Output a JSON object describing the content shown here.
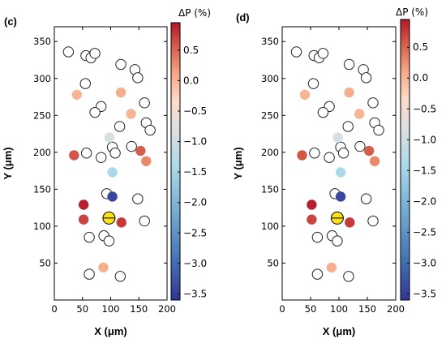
{
  "figure": {
    "panels": [
      "(c)",
      "(d)"
    ],
    "xlabel": "X (μm)",
    "ylabel": "Y (μm)",
    "colorbar_label": "ΔP (%)"
  },
  "colors": {
    "open_marker_edge": "#222222",
    "yellow_marker": "#ffe11a",
    "colormap": "RdBu_r"
  },
  "chart_data": [
    {
      "type": "scatter",
      "panel": "(c)",
      "title": "",
      "xlabel": "X (μm)",
      "ylabel": "Y (μm)",
      "xlim": [
        0,
        200
      ],
      "ylim": [
        0,
        370
      ],
      "xticks": [
        0,
        50,
        100,
        150,
        200
      ],
      "yticks": [
        50,
        100,
        150,
        200,
        250,
        300,
        350
      ],
      "grid": false,
      "colorbar": {
        "label": "ΔP (%)",
        "range": [
          -3.6,
          0.95
        ],
        "ticks": [
          0.5,
          0.0,
          -0.5,
          -1.0,
          -1.5,
          -2.0,
          -2.5,
          -3.0,
          -3.5
        ],
        "tick_labels": [
          "0.5",
          "0.0",
          "−0.5",
          "−1.0",
          "−1.5",
          "−2.0",
          "−2.5",
          "−3.0",
          "−3.5"
        ]
      },
      "open_points": [
        [
          25,
          336
        ],
        [
          56,
          331
        ],
        [
          65,
          328
        ],
        [
          72,
          334
        ],
        [
          118,
          319
        ],
        [
          143,
          312
        ],
        [
          148,
          301
        ],
        [
          55,
          293
        ],
        [
          83,
          262
        ],
        [
          72,
          254
        ],
        [
          160,
          267
        ],
        [
          163,
          240
        ],
        [
          170,
          230
        ],
        [
          116,
          235
        ],
        [
          137,
          208
        ],
        [
          103,
          207
        ],
        [
          108,
          199
        ],
        [
          57,
          199
        ],
        [
          83,
          193
        ],
        [
          93,
          144
        ],
        [
          148,
          137
        ],
        [
          160,
          107
        ],
        [
          62,
          85
        ],
        [
          88,
          87
        ],
        [
          97,
          80
        ],
        [
          62,
          35
        ],
        [
          117,
          32
        ]
      ],
      "colored_points": [
        {
          "x": 40,
          "y": 278,
          "dp": 0.0
        },
        {
          "x": 118,
          "y": 281,
          "dp": 0.05
        },
        {
          "x": 136,
          "y": 252,
          "dp": 0.0
        },
        {
          "x": 98,
          "y": 220,
          "dp": -0.9
        },
        {
          "x": 35,
          "y": 196,
          "dp": 0.6
        },
        {
          "x": 153,
          "y": 202,
          "dp": 0.55
        },
        {
          "x": 163,
          "y": 188,
          "dp": 0.3
        },
        {
          "x": 103,
          "y": 173,
          "dp": -1.4
        },
        {
          "x": 103,
          "y": 140,
          "dp": -3.4
        },
        {
          "x": 52,
          "y": 129,
          "dp": 0.9
        },
        {
          "x": 52,
          "y": 109,
          "dp": 0.7
        },
        {
          "x": 119,
          "y": 105,
          "dp": 0.75
        },
        {
          "x": 87,
          "y": 44,
          "dp": 0.05
        }
      ],
      "highlight_point": {
        "x": 97,
        "y": 111,
        "color": "yellow"
      }
    },
    {
      "type": "scatter",
      "panel": "(d)",
      "title": "",
      "xlabel": "X (μm)",
      "ylabel": "Y (μm)",
      "xlim": [
        0,
        200
      ],
      "ylim": [
        0,
        370
      ],
      "xticks": [
        0,
        50,
        100,
        150,
        200
      ],
      "yticks": [
        50,
        100,
        150,
        200,
        250,
        300,
        350
      ],
      "grid": false,
      "colorbar": {
        "label": "ΔP (%)",
        "range": [
          -3.6,
          0.95
        ],
        "ticks": [
          0.5,
          0.0,
          -0.5,
          -1.0,
          -1.5,
          -2.0,
          -2.5,
          -3.0,
          -3.5
        ],
        "tick_labels": [
          "0.5",
          "0.0",
          "−0.5",
          "−1.0",
          "−1.5",
          "−2.0",
          "−2.5",
          "−3.0",
          "−3.5"
        ]
      },
      "open_points": [
        [
          25,
          336
        ],
        [
          56,
          331
        ],
        [
          65,
          328
        ],
        [
          72,
          334
        ],
        [
          118,
          319
        ],
        [
          143,
          312
        ],
        [
          148,
          301
        ],
        [
          55,
          293
        ],
        [
          83,
          262
        ],
        [
          72,
          254
        ],
        [
          160,
          267
        ],
        [
          163,
          240
        ],
        [
          170,
          230
        ],
        [
          116,
          235
        ],
        [
          137,
          208
        ],
        [
          103,
          207
        ],
        [
          108,
          199
        ],
        [
          57,
          199
        ],
        [
          83,
          193
        ],
        [
          93,
          144
        ],
        [
          148,
          137
        ],
        [
          160,
          107
        ],
        [
          62,
          85
        ],
        [
          88,
          87
        ],
        [
          97,
          80
        ],
        [
          62,
          35
        ],
        [
          117,
          32
        ]
      ],
      "colored_points": [
        {
          "x": 40,
          "y": 278,
          "dp": 0.0
        },
        {
          "x": 118,
          "y": 281,
          "dp": 0.05
        },
        {
          "x": 136,
          "y": 252,
          "dp": 0.0
        },
        {
          "x": 98,
          "y": 220,
          "dp": -0.9
        },
        {
          "x": 35,
          "y": 196,
          "dp": 0.6
        },
        {
          "x": 153,
          "y": 202,
          "dp": 0.55
        },
        {
          "x": 163,
          "y": 188,
          "dp": 0.3
        },
        {
          "x": 103,
          "y": 173,
          "dp": -1.4
        },
        {
          "x": 103,
          "y": 140,
          "dp": -3.4
        },
        {
          "x": 52,
          "y": 129,
          "dp": 0.9
        },
        {
          "x": 52,
          "y": 109,
          "dp": 0.7
        },
        {
          "x": 119,
          "y": 105,
          "dp": 0.75
        },
        {
          "x": 87,
          "y": 44,
          "dp": 0.05
        }
      ],
      "highlight_point": {
        "x": 97,
        "y": 111,
        "color": "yellow"
      }
    }
  ]
}
